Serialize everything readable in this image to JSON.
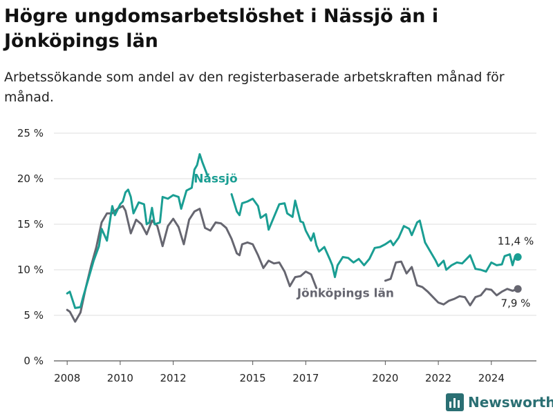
{
  "header": {
    "title": "Högre ungdomsarbetslöshet i Nässjö än i Jönköpings län",
    "subtitle": "Arbetssökande som andel av den registerbaserade arbetskraften månad för månad."
  },
  "brand": {
    "name": "Newsworthy",
    "icon": "bar-chart-logo-icon",
    "color": "#2a6f73"
  },
  "chart_data": {
    "type": "line",
    "x_ticks": [
      "2008",
      "2010",
      "2012",
      "2015",
      "2017",
      "2020",
      "2022",
      "2024"
    ],
    "y_ticks": [
      "0 %",
      "5 %",
      "10 %",
      "15 %",
      "20 %",
      "25 %"
    ],
    "ylim": [
      0,
      25
    ],
    "xlim": [
      2007.5,
      2025.7
    ],
    "grid": true,
    "series": [
      {
        "name": "Nässjö",
        "color": "#1a9e93",
        "end_label": "11,4 %",
        "points": [
          [
            2008.0,
            7.4
          ],
          [
            2008.1,
            7.6
          ],
          [
            2008.3,
            5.8
          ],
          [
            2008.5,
            5.9
          ],
          [
            2008.6,
            7.0
          ],
          [
            2008.8,
            9.0
          ],
          [
            2009.0,
            11.0
          ],
          [
            2009.2,
            12.6
          ],
          [
            2009.3,
            14.5
          ],
          [
            2009.5,
            13.2
          ],
          [
            2009.7,
            17.0
          ],
          [
            2009.8,
            16.0
          ],
          [
            2010.0,
            17.2
          ],
          [
            2010.1,
            17.5
          ],
          [
            2010.2,
            18.5
          ],
          [
            2010.3,
            18.8
          ],
          [
            2010.4,
            18.0
          ],
          [
            2010.5,
            16.2
          ],
          [
            2010.7,
            17.4
          ],
          [
            2010.9,
            17.2
          ],
          [
            2011.0,
            15.0
          ],
          [
            2011.1,
            15.2
          ],
          [
            2011.2,
            16.8
          ],
          [
            2011.3,
            15.0
          ],
          [
            2011.5,
            15.2
          ],
          [
            2011.6,
            18.0
          ],
          [
            2011.8,
            17.8
          ],
          [
            2012.0,
            18.2
          ],
          [
            2012.2,
            18.0
          ],
          [
            2012.3,
            16.7
          ],
          [
            2012.5,
            18.7
          ],
          [
            2012.7,
            19.0
          ],
          [
            2012.8,
            21.0
          ],
          [
            2012.9,
            21.5
          ],
          [
            2013.0,
            22.7
          ],
          [
            2013.1,
            21.8
          ],
          [
            2013.3,
            20.3
          ]
        ],
        "points_b": [
          [
            2014.2,
            18.3
          ],
          [
            2014.4,
            16.4
          ],
          [
            2014.5,
            16.0
          ],
          [
            2014.6,
            17.3
          ],
          [
            2014.8,
            17.5
          ],
          [
            2015.0,
            17.8
          ],
          [
            2015.2,
            17.0
          ],
          [
            2015.3,
            15.7
          ],
          [
            2015.5,
            16.1
          ],
          [
            2015.6,
            14.4
          ],
          [
            2015.8,
            15.8
          ],
          [
            2016.0,
            17.2
          ],
          [
            2016.2,
            17.3
          ],
          [
            2016.3,
            16.2
          ],
          [
            2016.5,
            15.8
          ],
          [
            2016.6,
            17.6
          ],
          [
            2016.8,
            15.3
          ],
          [
            2016.9,
            15.2
          ],
          [
            2017.0,
            14.3
          ],
          [
            2017.2,
            13.2
          ],
          [
            2017.3,
            14.0
          ],
          [
            2017.4,
            12.7
          ],
          [
            2017.5,
            12.0
          ],
          [
            2017.7,
            12.5
          ],
          [
            2017.9,
            11.2
          ],
          [
            2018.0,
            10.5
          ],
          [
            2018.1,
            9.2
          ],
          [
            2018.2,
            10.5
          ],
          [
            2018.4,
            11.4
          ],
          [
            2018.6,
            11.3
          ],
          [
            2018.8,
            10.8
          ],
          [
            2019.0,
            11.2
          ],
          [
            2019.2,
            10.5
          ],
          [
            2019.4,
            11.2
          ],
          [
            2019.6,
            12.4
          ],
          [
            2019.8,
            12.5
          ],
          [
            2020.0,
            12.8
          ],
          [
            2020.2,
            13.2
          ],
          [
            2020.3,
            12.7
          ],
          [
            2020.5,
            13.5
          ],
          [
            2020.7,
            14.8
          ],
          [
            2020.9,
            14.5
          ],
          [
            2021.0,
            13.8
          ],
          [
            2021.2,
            15.2
          ],
          [
            2021.3,
            15.4
          ],
          [
            2021.5,
            13.0
          ],
          [
            2021.7,
            12.0
          ],
          [
            2021.9,
            11.0
          ],
          [
            2022.0,
            10.4
          ],
          [
            2022.2,
            11.0
          ],
          [
            2022.3,
            10.0
          ],
          [
            2022.5,
            10.5
          ],
          [
            2022.7,
            10.8
          ],
          [
            2022.9,
            10.7
          ],
          [
            2023.0,
            11.0
          ],
          [
            2023.2,
            11.6
          ],
          [
            2023.4,
            10.1
          ],
          [
            2023.6,
            10.0
          ],
          [
            2023.8,
            9.8
          ],
          [
            2024.0,
            10.8
          ],
          [
            2024.2,
            10.5
          ],
          [
            2024.4,
            10.6
          ],
          [
            2024.5,
            11.5
          ],
          [
            2024.7,
            11.7
          ],
          [
            2024.8,
            10.5
          ],
          [
            2024.9,
            11.5
          ],
          [
            2025.0,
            11.4
          ]
        ]
      },
      {
        "name": "Jönköpings län",
        "color": "#666670",
        "end_label": "7,9 %",
        "points": [
          [
            2008.0,
            5.6
          ],
          [
            2008.1,
            5.4
          ],
          [
            2008.3,
            4.3
          ],
          [
            2008.5,
            5.3
          ],
          [
            2008.7,
            8.0
          ],
          [
            2008.9,
            10.4
          ],
          [
            2009.1,
            12.5
          ],
          [
            2009.3,
            15.2
          ],
          [
            2009.5,
            16.2
          ],
          [
            2009.7,
            16.2
          ],
          [
            2009.9,
            16.7
          ],
          [
            2010.1,
            17.0
          ],
          [
            2010.2,
            16.5
          ],
          [
            2010.4,
            14.0
          ],
          [
            2010.6,
            15.5
          ],
          [
            2010.8,
            15.0
          ],
          [
            2011.0,
            13.9
          ],
          [
            2011.2,
            15.4
          ],
          [
            2011.4,
            14.8
          ],
          [
            2011.6,
            12.6
          ],
          [
            2011.8,
            14.8
          ],
          [
            2012.0,
            15.6
          ],
          [
            2012.2,
            14.7
          ],
          [
            2012.4,
            12.8
          ],
          [
            2012.6,
            15.5
          ],
          [
            2012.8,
            16.4
          ],
          [
            2013.0,
            16.7
          ],
          [
            2013.2,
            14.6
          ],
          [
            2013.4,
            14.3
          ],
          [
            2013.6,
            15.2
          ],
          [
            2013.8,
            15.1
          ],
          [
            2014.0,
            14.6
          ],
          [
            2014.2,
            13.4
          ],
          [
            2014.4,
            11.8
          ],
          [
            2014.5,
            11.6
          ],
          [
            2014.6,
            12.8
          ],
          [
            2014.8,
            13.0
          ],
          [
            2015.0,
            12.8
          ],
          [
            2015.2,
            11.6
          ],
          [
            2015.4,
            10.2
          ],
          [
            2015.6,
            11.0
          ],
          [
            2015.8,
            10.7
          ],
          [
            2016.0,
            10.8
          ],
          [
            2016.2,
            9.8
          ],
          [
            2016.4,
            8.2
          ],
          [
            2016.6,
            9.2
          ],
          [
            2016.8,
            9.3
          ],
          [
            2017.0,
            9.8
          ],
          [
            2017.2,
            9.5
          ],
          [
            2017.4,
            8.0
          ]
        ],
        "points_b": [
          [
            2020.0,
            8.8
          ],
          [
            2020.2,
            9.0
          ],
          [
            2020.4,
            10.8
          ],
          [
            2020.6,
            10.9
          ],
          [
            2020.8,
            9.6
          ],
          [
            2021.0,
            10.3
          ],
          [
            2021.2,
            8.3
          ],
          [
            2021.4,
            8.1
          ],
          [
            2021.6,
            7.6
          ],
          [
            2021.8,
            7.0
          ],
          [
            2022.0,
            6.4
          ],
          [
            2022.2,
            6.2
          ],
          [
            2022.4,
            6.6
          ],
          [
            2022.6,
            6.8
          ],
          [
            2022.8,
            7.1
          ],
          [
            2023.0,
            7.0
          ],
          [
            2023.2,
            6.1
          ],
          [
            2023.4,
            7.0
          ],
          [
            2023.6,
            7.2
          ],
          [
            2023.8,
            7.9
          ],
          [
            2024.0,
            7.8
          ],
          [
            2024.2,
            7.2
          ],
          [
            2024.4,
            7.6
          ],
          [
            2024.6,
            7.9
          ],
          [
            2024.8,
            7.7
          ],
          [
            2025.0,
            7.9
          ]
        ],
        "points_hidden_note": ""
      }
    ]
  }
}
